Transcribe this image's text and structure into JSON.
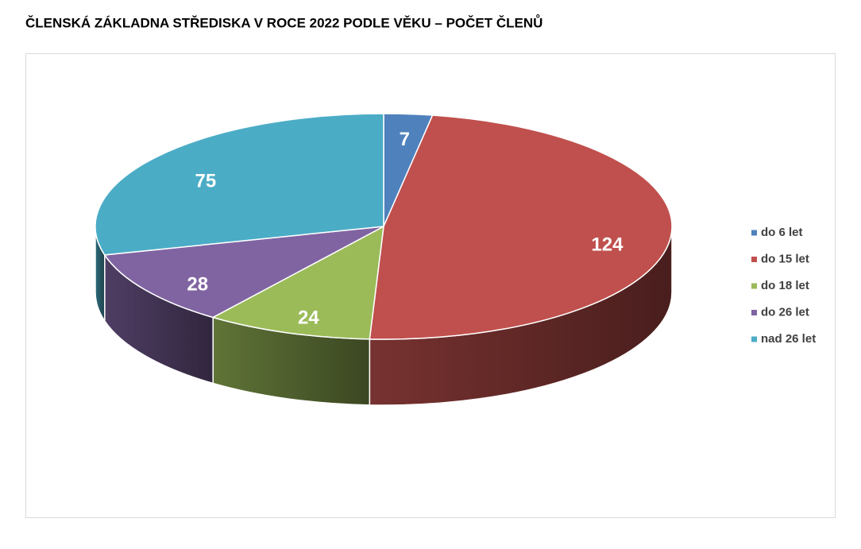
{
  "chart_data": {
    "type": "pie3d",
    "title": "ČLENSKÁ ZÁKLADNA STŘEDISKA V ROCE 2022 PODLE VĚKU – POČET ČLENŮ",
    "categories": [
      "do 6 let",
      "do 15 let",
      "do 18 let",
      "do 26 let",
      "nad 26 let"
    ],
    "values": [
      7,
      124,
      24,
      28,
      75
    ],
    "colors": [
      "#4f81bd",
      "#c0504d",
      "#9bbb59",
      "#8064a2",
      "#4bacc6"
    ],
    "legend": "right"
  }
}
